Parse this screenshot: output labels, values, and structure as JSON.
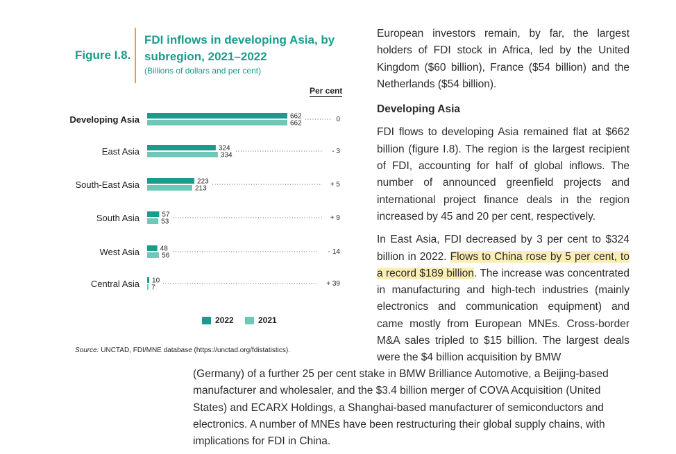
{
  "figure": {
    "label": "Figure I.8.",
    "title": "FDI inflows in developing Asia, by subregion, 2021–2022",
    "subtitle": "(Billions of dollars and per cent)",
    "percent_header": "Per cent",
    "source_prefix": "Source:",
    "source_text": "UNCTAD, FDI/MNE database (https://unctad.org/fdistatistics)."
  },
  "chart_data": {
    "type": "bar",
    "orientation": "horizontal",
    "categories": [
      "Developing Asia",
      "East Asia",
      "South-East Asia",
      "South Asia",
      "West Asia",
      "Central Asia"
    ],
    "series": [
      {
        "name": "2022",
        "values": [
          662,
          324,
          223,
          57,
          48,
          10
        ],
        "color": "#1a9c8c"
      },
      {
        "name": "2021",
        "values": [
          662,
          334,
          213,
          53,
          56,
          7
        ],
        "color": "#6fc7b8"
      }
    ],
    "percent_change": [
      "0",
      "- 3",
      "+ 5",
      "+ 9",
      "- 14",
      "+ 39"
    ],
    "legend": [
      "2022",
      "2021"
    ],
    "legend_position": "bottom"
  },
  "text": {
    "intro": "European investors remain, by far, the largest holders of FDI stock in Africa, led by the United Kingdom ($60 billion), France ($54 billion) and the Netherlands ($54 billion).",
    "heading": "Developing Asia",
    "p1": "FDI flows to developing Asia remained flat at $662 billion (figure I.8). The region is the largest recipient of FDI, accounting for half of global inflows. The number of announced greenfield projects and international project finance deals in the region increased by 45 and 20 per cent, respectively.",
    "p2_before": "In East Asia, FDI decreased by 3 per cent to $324 billion in 2022. ",
    "p2_highlight": "Flows to China rose by 5 per cent, to a record $189 billion",
    "p2_after": ". The increase was concentrated in manufacturing and high-tech industries (mainly electronics and communication equipment) and came mostly from European MNEs. Cross-border M&A sales tripled to $15 billion. The largest deals were the $4 billion acquisition by BMW",
    "bottom": "(Germany) of a further 25 per cent stake in BMW Brilliance Automotive, a Beijing-based manufacturer and wholesaler, and the $3.4 billion merger of COVA Acquisition (United States) and ECARX Holdings, a Shanghai-based manufacturer of semiconductors and electronics. A number of MNEs have been restructuring their global supply chains, with implications for FDI in China."
  }
}
